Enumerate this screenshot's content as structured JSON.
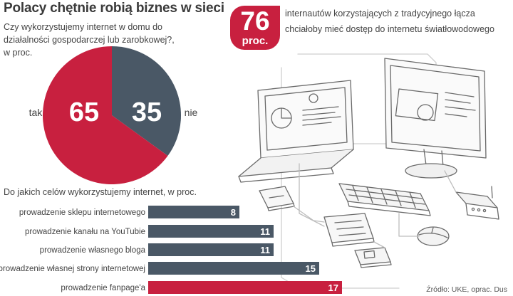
{
  "title": "Polacy chętnie robią biznes w sieci",
  "stat": {
    "value": "76",
    "unit": "proc.",
    "text": "internautów korzystających z tradycyjnego łącza chciałoby mieć dostęp do internetu światłowodowego"
  },
  "source": "Źródło: UKE, oprac. Dus",
  "colors": {
    "accent": "#c8203f",
    "slate": "#4a5866",
    "light_pink": "#e8929a"
  },
  "illustration": "computer-and-devices-line-art",
  "chart_data": [
    {
      "type": "pie",
      "title": "Czy wykorzystujemy internet w domu do działalności gospodarczej lub zarobkowej?, w proc.",
      "slices": [
        {
          "label": "tak",
          "value": 65,
          "color": "#c8203f"
        },
        {
          "label": "nie",
          "value": 35,
          "color": "#4a5866"
        }
      ]
    },
    {
      "type": "bar",
      "title": "Do jakich celów wykorzystujemy internet, w proc.",
      "categories": [
        "prowadzenie sklepu internetowego",
        "prowadzenie kanału na YouTubie",
        "prowadzenie własnego bloga",
        "prowadzenie własnej strony internetowej",
        "prowadzenie fanpage'a"
      ],
      "values": [
        8,
        11,
        11,
        15,
        17
      ],
      "colors": [
        "#4a5866",
        "#4a5866",
        "#4a5866",
        "#4a5866",
        "#c8203f"
      ]
    }
  ]
}
